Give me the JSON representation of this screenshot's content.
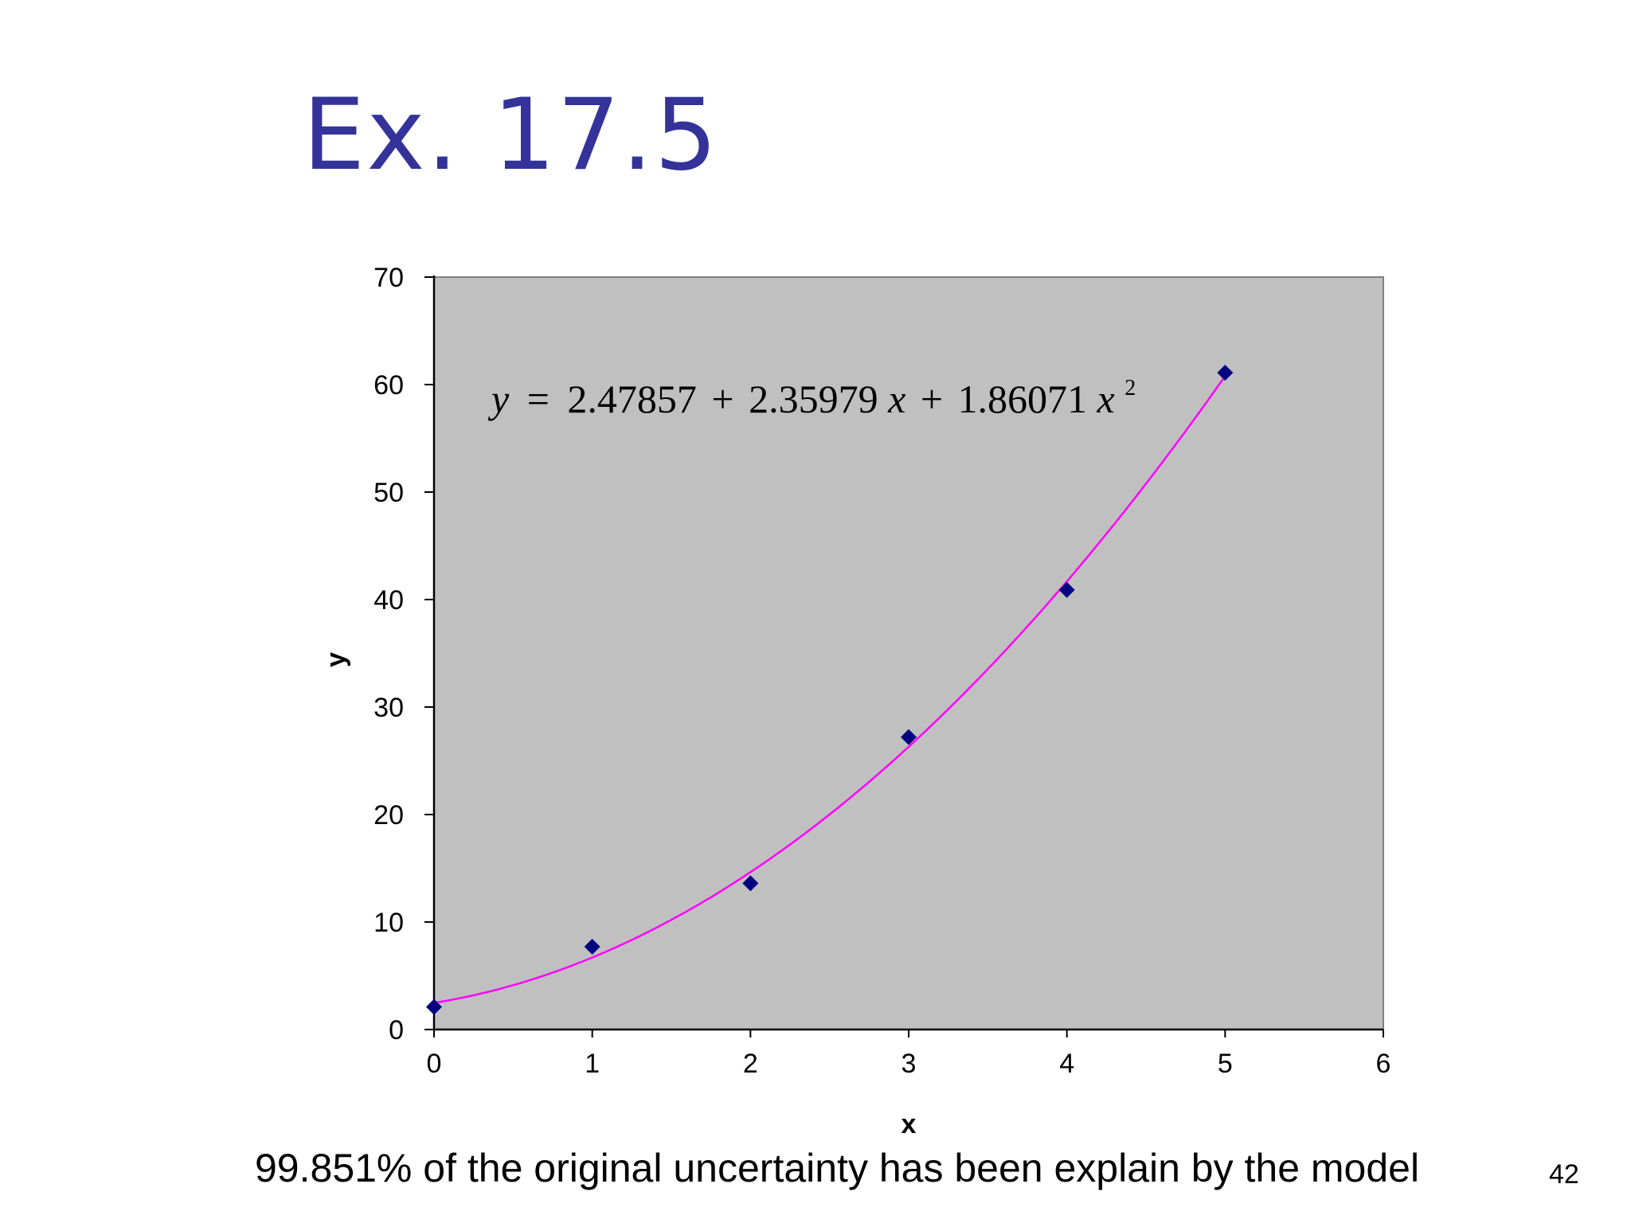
{
  "slide": {
    "title": "Ex. 17.5",
    "footer_note": "99.851% of the original uncertainty has been explain by the model",
    "page_number": "42"
  },
  "chart_data": {
    "type": "scatter",
    "title": "",
    "xlabel": "x",
    "ylabel": "y",
    "xlim": [
      0,
      6
    ],
    "ylim": [
      0,
      70
    ],
    "x_ticks": [
      0,
      1,
      2,
      3,
      4,
      5,
      6
    ],
    "y_ticks": [
      0,
      10,
      20,
      30,
      40,
      50,
      60,
      70
    ],
    "plot_background": "#c0c0c0",
    "grid": false,
    "legend": "none",
    "series": [
      {
        "kind": "points",
        "color": "#000080",
        "marker": "diamond",
        "x": [
          0,
          1,
          2,
          3,
          4,
          5
        ],
        "y": [
          2.1,
          7.7,
          13.6,
          27.2,
          40.9,
          61.1
        ]
      },
      {
        "kind": "trendline",
        "color": "#ff00ff",
        "fit": "polynomial order 2",
        "coefficients": [
          2.47857,
          2.35979,
          1.86071
        ]
      }
    ],
    "equation": {
      "lhs": "y",
      "equals": "=",
      "c0": "2.47857",
      "plus1": "+",
      "c1": "2.35979",
      "var1": "x",
      "plus2": "+",
      "c2": "1.86071",
      "var2": "x",
      "exp": "2"
    }
  }
}
